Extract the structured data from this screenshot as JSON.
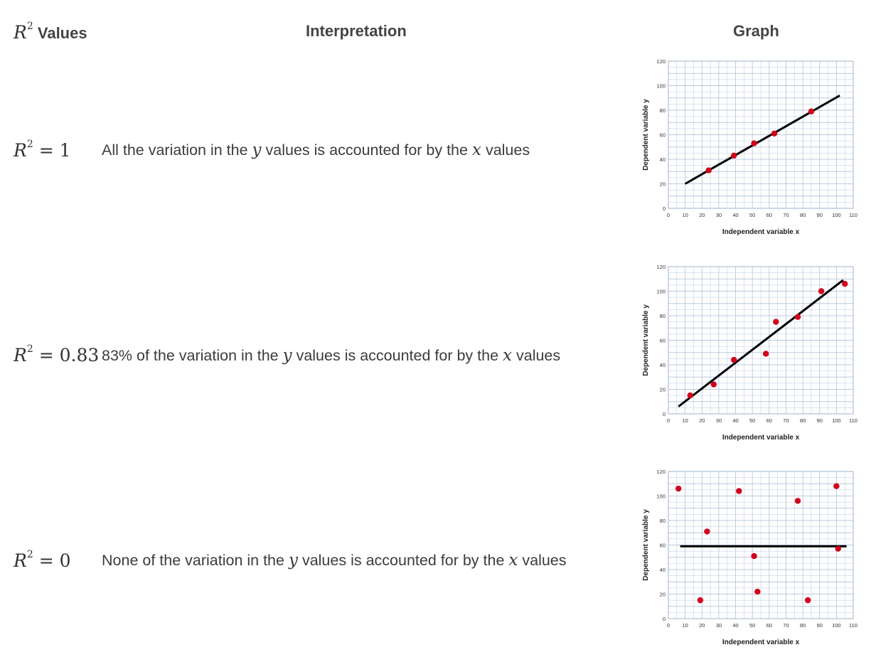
{
  "headers": {
    "col1_suffix": "Values",
    "col2": "Interpretation",
    "col3": "Graph"
  },
  "rows": [
    {
      "symbol": "R",
      "power": "2",
      "rhs": "= 1",
      "interp_pre": "All the variation in the",
      "interp_mid": "values is accounted for by the",
      "interp_post": "values",
      "var_y": "y",
      "var_x": "x"
    },
    {
      "symbol": "R",
      "power": "2",
      "rhs": "= 0.83",
      "interp_pre": "83% of the variation in the",
      "interp_mid": "values is accounted for by the",
      "interp_post": "values",
      "var_y": "y",
      "var_x": "x"
    },
    {
      "symbol": "R",
      "power": "2",
      "rhs": "= 0",
      "interp_pre": "None of the variation in the",
      "interp_mid": "values is accounted for by the",
      "interp_post": "values",
      "var_y": "y",
      "var_x": "x"
    }
  ],
  "colors": {
    "point": "#d0021b",
    "line": "#000000",
    "grid": "#b9c9dc",
    "grid_frame": "#9fb3cc"
  },
  "chart_data": [
    {
      "type": "scatter",
      "xlabel": "Independent variable x",
      "ylabel": "Dependent variable y",
      "xlim": [
        0,
        110
      ],
      "ylim": [
        0,
        120
      ],
      "grid": true,
      "xticks": [
        0,
        10,
        20,
        30,
        40,
        50,
        60,
        70,
        80,
        90,
        100,
        110
      ],
      "yticks": [
        0,
        20,
        40,
        60,
        80,
        100,
        120
      ],
      "points": [
        [
          24,
          31
        ],
        [
          39,
          43
        ],
        [
          51,
          53
        ],
        [
          63,
          61
        ],
        [
          85,
          79
        ]
      ],
      "trendline": [
        [
          10,
          20
        ],
        [
          102,
          92
        ]
      ]
    },
    {
      "type": "scatter",
      "xlabel": "Independent variable x",
      "ylabel": "Dependent variable y",
      "xlim": [
        0,
        110
      ],
      "ylim": [
        0,
        120
      ],
      "grid": true,
      "xticks": [
        0,
        10,
        20,
        30,
        40,
        50,
        60,
        70,
        80,
        90,
        100,
        110
      ],
      "yticks": [
        0,
        20,
        40,
        60,
        80,
        100,
        120
      ],
      "points": [
        [
          13,
          15
        ],
        [
          27,
          24
        ],
        [
          39,
          44
        ],
        [
          58,
          49
        ],
        [
          64,
          75
        ],
        [
          77,
          79
        ],
        [
          91,
          100
        ],
        [
          105,
          106
        ]
      ],
      "trendline": [
        [
          6,
          6
        ],
        [
          104,
          109
        ]
      ]
    },
    {
      "type": "scatter",
      "xlabel": "Independent variable x",
      "ylabel": "Dependent variable y",
      "xlim": [
        0,
        110
      ],
      "ylim": [
        0,
        120
      ],
      "grid": true,
      "xticks": [
        0,
        10,
        20,
        30,
        40,
        50,
        60,
        70,
        80,
        90,
        100,
        110
      ],
      "yticks": [
        0,
        20,
        40,
        60,
        80,
        100,
        120
      ],
      "points": [
        [
          6,
          106
        ],
        [
          19,
          15
        ],
        [
          23,
          71
        ],
        [
          42,
          104
        ],
        [
          51,
          51
        ],
        [
          53,
          22
        ],
        [
          77,
          96
        ],
        [
          83,
          15
        ],
        [
          100,
          108
        ],
        [
          101,
          57
        ]
      ],
      "trendline": [
        [
          7,
          59
        ],
        [
          106,
          59
        ]
      ]
    }
  ]
}
